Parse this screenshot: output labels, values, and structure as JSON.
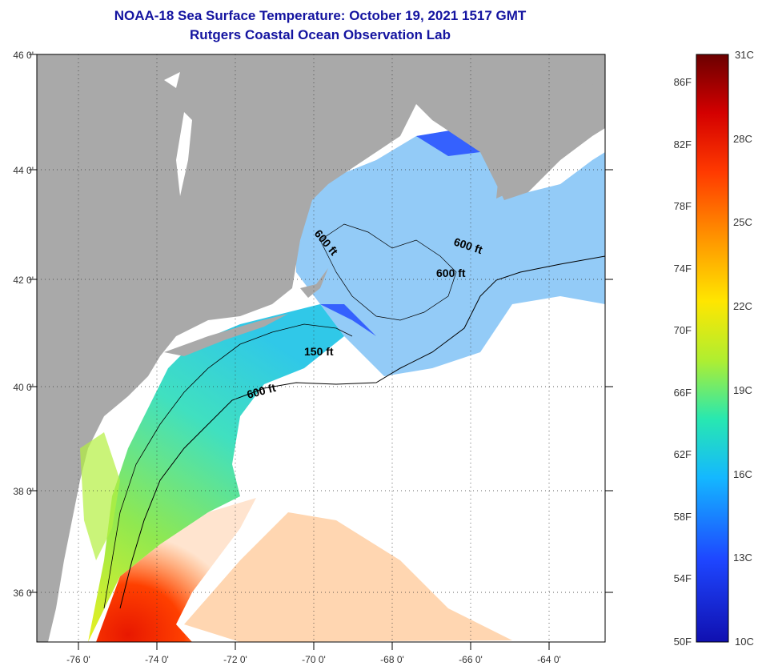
{
  "header": {
    "title": "NOAA-18 Sea Surface Temperature:  October 19, 2021 1517 GMT",
    "subtitle": "Rutgers Coastal Ocean Observation Lab"
  },
  "map": {
    "lat_labels": [
      "46 0'",
      "44 0'",
      "42 0'",
      "40 0'",
      "38 0'",
      "36 0'"
    ],
    "lon_labels": [
      "-76 0'",
      "-74 0'",
      "-72 0'",
      "-70 0'",
      "-68 0'",
      "-66 0'",
      "-64 0'"
    ],
    "contour_labels": [
      "600 ft",
      "600 ft",
      "600 ft",
      "150 ft",
      "600 ft"
    ],
    "colors": {
      "land": "#a9a9a9",
      "cloud": "#ffffff"
    }
  },
  "colorbar": {
    "celsius_labels": [
      "31C",
      "28C",
      "25C",
      "22C",
      "19C",
      "16C",
      "13C",
      "10C"
    ],
    "fahrenheit_labels": [
      "86F",
      "82F",
      "78F",
      "74F",
      "70F",
      "66F",
      "62F",
      "58F",
      "54F",
      "50F"
    ],
    "stops": [
      "#6b0000",
      "#d40000",
      "#ff3a00",
      "#ff9a00",
      "#ffe600",
      "#b0ee30",
      "#28e8b0",
      "#14b8ff",
      "#1e46ff",
      "#1010b0"
    ]
  }
}
